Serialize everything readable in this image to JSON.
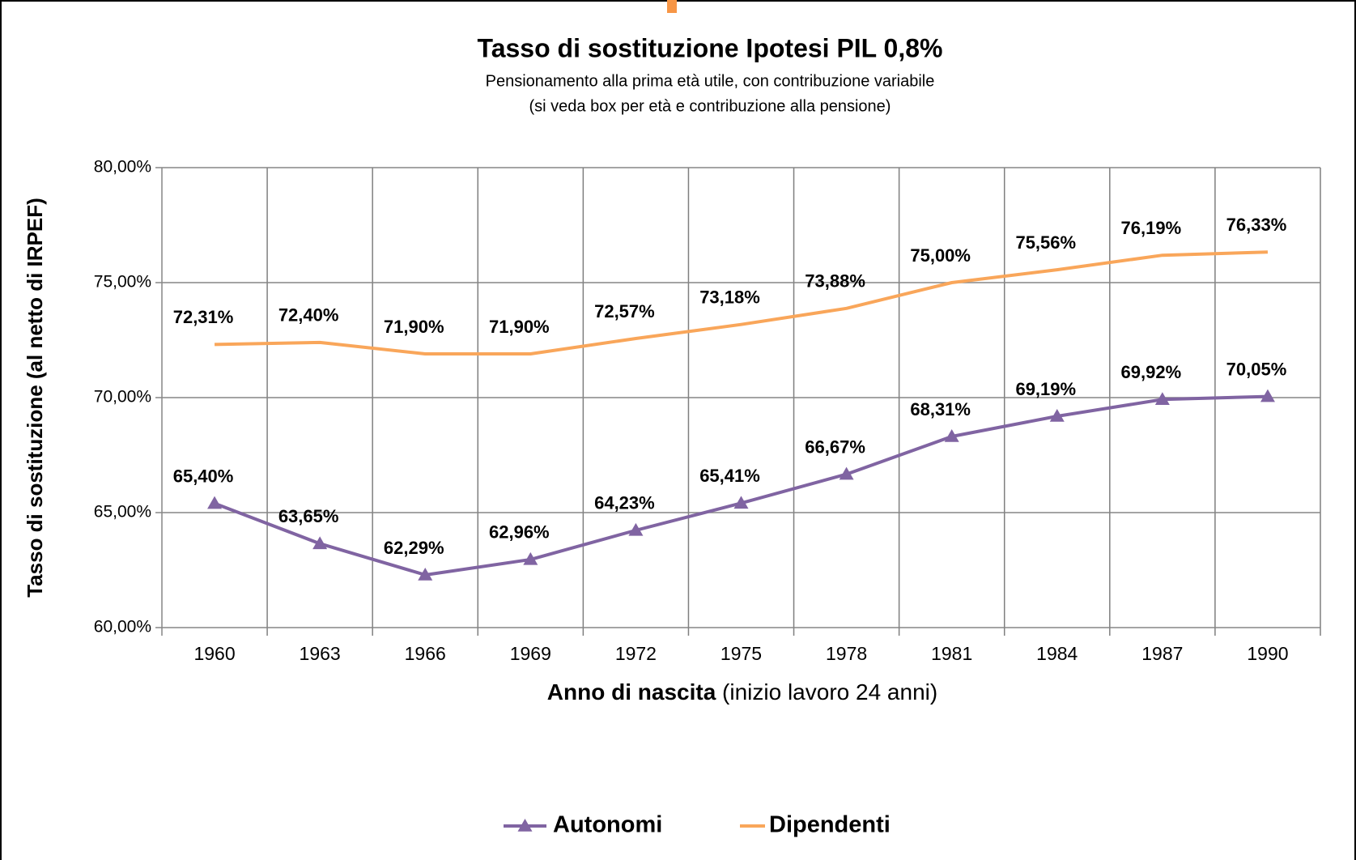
{
  "chart_data": {
    "type": "line",
    "title": "Tasso di sostituzione Ipotesi PIL 0,8%",
    "subtitle": [
      "Pensionamento  alla prima età utile, con contribuzione variabile",
      "(si veda box per età e contribuzione alla pensione)"
    ],
    "y_label": "Tasso di sostituzione (al netto di IRPEF)",
    "x_label": "Anno di nascita",
    "x_label_note": "(inizio lavoro 24 anni)",
    "categories": [
      "1960",
      "1963",
      "1966",
      "1969",
      "1972",
      "1975",
      "1978",
      "1981",
      "1984",
      "1987",
      "1990"
    ],
    "series": [
      {
        "name": "Autonomi",
        "color": "#8064a2",
        "marker": "triangle",
        "values": [
          65.4,
          63.65,
          62.29,
          62.96,
          64.23,
          65.41,
          66.67,
          68.31,
          69.19,
          69.92,
          70.05
        ],
        "value_labels": [
          "65,40%",
          "63,65%",
          "62,29%",
          "62,96%",
          "64,23%",
          "65,41%",
          "66,67%",
          "68,31%",
          "69,19%",
          "69,92%",
          "70,05%"
        ]
      },
      {
        "name": "Dipendenti",
        "color": "#f9a65a",
        "values": [
          72.31,
          72.4,
          71.9,
          71.9,
          72.57,
          73.18,
          73.88,
          75.0,
          75.56,
          76.19,
          76.33
        ],
        "value_labels": [
          "72,31%",
          "72,40%",
          "71,90%",
          "71,90%",
          "72,57%",
          "73,18%",
          "73,88%",
          "75,00%",
          "75,56%",
          "76,19%",
          "76,33%"
        ]
      }
    ],
    "ylim": [
      60,
      80
    ],
    "yticks": [
      {
        "value": 60,
        "label": "60,00%"
      },
      {
        "value": 65,
        "label": "65,00%"
      },
      {
        "value": 70,
        "label": "70,00%"
      },
      {
        "value": 75,
        "label": "75,00%"
      },
      {
        "value": 80,
        "label": "80,00%"
      }
    ],
    "grid": true,
    "legend": "bottom"
  }
}
